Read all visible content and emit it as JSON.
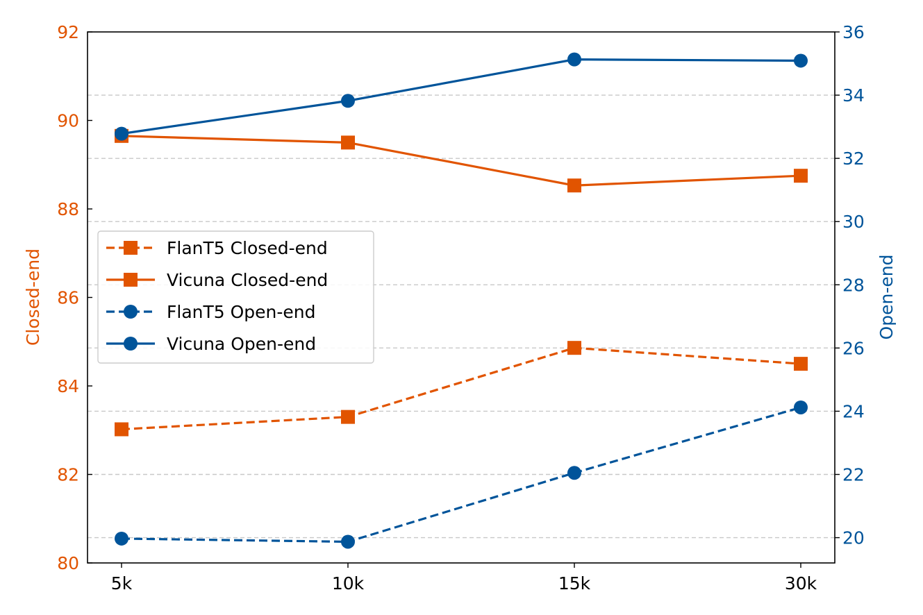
{
  "chart_data": {
    "type": "line",
    "categories": [
      "5k",
      "10k",
      "15k",
      "30k"
    ],
    "left_axis": {
      "label": "Closed-end",
      "ylim": [
        80,
        92
      ],
      "ticks": [
        80,
        82,
        84,
        86,
        88,
        90,
        92
      ],
      "color": "#e15400"
    },
    "right_axis": {
      "label": "Open-end",
      "ylim": [
        19.2,
        36
      ],
      "ticks": [
        20,
        22,
        24,
        26,
        28,
        30,
        32,
        34,
        36
      ],
      "color": "#00549a"
    },
    "series": [
      {
        "name": "FlanT5 Closed-end",
        "axis": "left",
        "style": "dashed",
        "marker": "square",
        "color": "#e15400",
        "values": [
          83.02,
          83.3,
          84.86,
          84.5
        ]
      },
      {
        "name": "Vicuna Closed-end",
        "axis": "left",
        "style": "solid",
        "marker": "square",
        "color": "#e15400",
        "values": [
          89.65,
          89.5,
          88.53,
          88.75
        ]
      },
      {
        "name": "FlanT5 Open-end",
        "axis": "right",
        "style": "dashed",
        "marker": "circle",
        "color": "#00549a",
        "values": [
          19.97,
          19.87,
          22.05,
          24.12
        ]
      },
      {
        "name": "Vicuna Open-end",
        "axis": "right",
        "style": "solid",
        "marker": "circle",
        "color": "#00549a",
        "values": [
          32.78,
          33.82,
          35.13,
          35.09
        ]
      }
    ],
    "grid": "horizontal-dashed-right-axis",
    "legend_position": "center-left"
  }
}
